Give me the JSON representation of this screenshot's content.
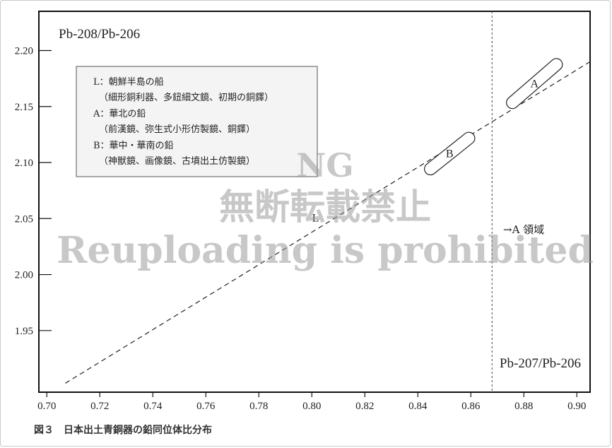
{
  "chart_data": {
    "type": "scatter",
    "title": "",
    "ylabel": "Pb-208/Pb-206",
    "xlabel": "Pb-207/Pb-206",
    "xlim": [
      0.697,
      0.905
    ],
    "ylim": [
      1.895,
      2.235
    ],
    "x_ticks": [
      "0.70",
      "0.72",
      "0.74",
      "0.76",
      "0.78",
      "0.80",
      "0.82",
      "0.84",
      "0.86",
      "0.88",
      "0.90"
    ],
    "y_ticks": [
      "1.95",
      "2.00",
      "2.05",
      "2.10",
      "2.15",
      "2.20"
    ],
    "grid": false,
    "legend": [
      "L：朝鮮半島の船",
      "（細形銅利器、多鈕細文鏡、初期の銅鐸）",
      "A：華北の鉛",
      "（前漢鏡、弥生式小形仿製鏡、銅鐸）",
      "B：華中・華南の鉛",
      "（神獣鏡、画像鏡、古墳出土仿製鏡）"
    ],
    "legend_placement": "top-left",
    "regions": [
      {
        "name": "A",
        "from": [
          0.874,
          2.15
        ],
        "to": [
          0.894,
          2.191
        ]
      },
      {
        "name": "B",
        "from": [
          0.843,
          2.091
        ],
        "to": [
          0.861,
          2.125
        ]
      }
    ],
    "reference_line": {
      "name": "L",
      "from": [
        0.707,
        1.903
      ],
      "to": [
        0.905,
        2.19
      ]
    },
    "vertical_line": {
      "x": 0.868,
      "label": "→A 領域"
    }
  },
  "caption": "図３　日本出土青銅器の鉛同位体比分布",
  "watermark": [
    "NG",
    "無断転載禁止",
    "Reuploading is prohibited"
  ]
}
